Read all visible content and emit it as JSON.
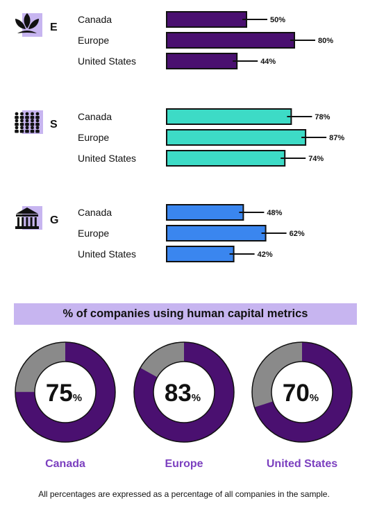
{
  "chart_data": [
    {
      "type": "bar",
      "title": "E",
      "categories": [
        "Canada",
        "Europe",
        "United States"
      ],
      "values": [
        50,
        80,
        44
      ],
      "value_suffix": "%",
      "color": "#4a1070",
      "icon": "leaf-icon"
    },
    {
      "type": "bar",
      "title": "S",
      "categories": [
        "Canada",
        "Europe",
        "United States"
      ],
      "values": [
        78,
        87,
        74
      ],
      "value_suffix": "%",
      "color": "#3ddbc6",
      "icon": "people-icon"
    },
    {
      "type": "bar",
      "title": "G",
      "categories": [
        "Canada",
        "Europe",
        "United States"
      ],
      "values": [
        48,
        62,
        42
      ],
      "value_suffix": "%",
      "color": "#3a86ef",
      "icon": "building-icon"
    },
    {
      "type": "pie",
      "title": "% of companies using human capital metrics",
      "categories": [
        "Canada",
        "Europe",
        "United States"
      ],
      "values": [
        75,
        83,
        70
      ],
      "value_suffix": "%",
      "colors": {
        "filled": "#4a1070",
        "remaining": "#8a8a8a",
        "label": "#7b3fbf"
      }
    }
  ],
  "footnote": "All percentages are expressed as a percentage of all companies in the sample."
}
